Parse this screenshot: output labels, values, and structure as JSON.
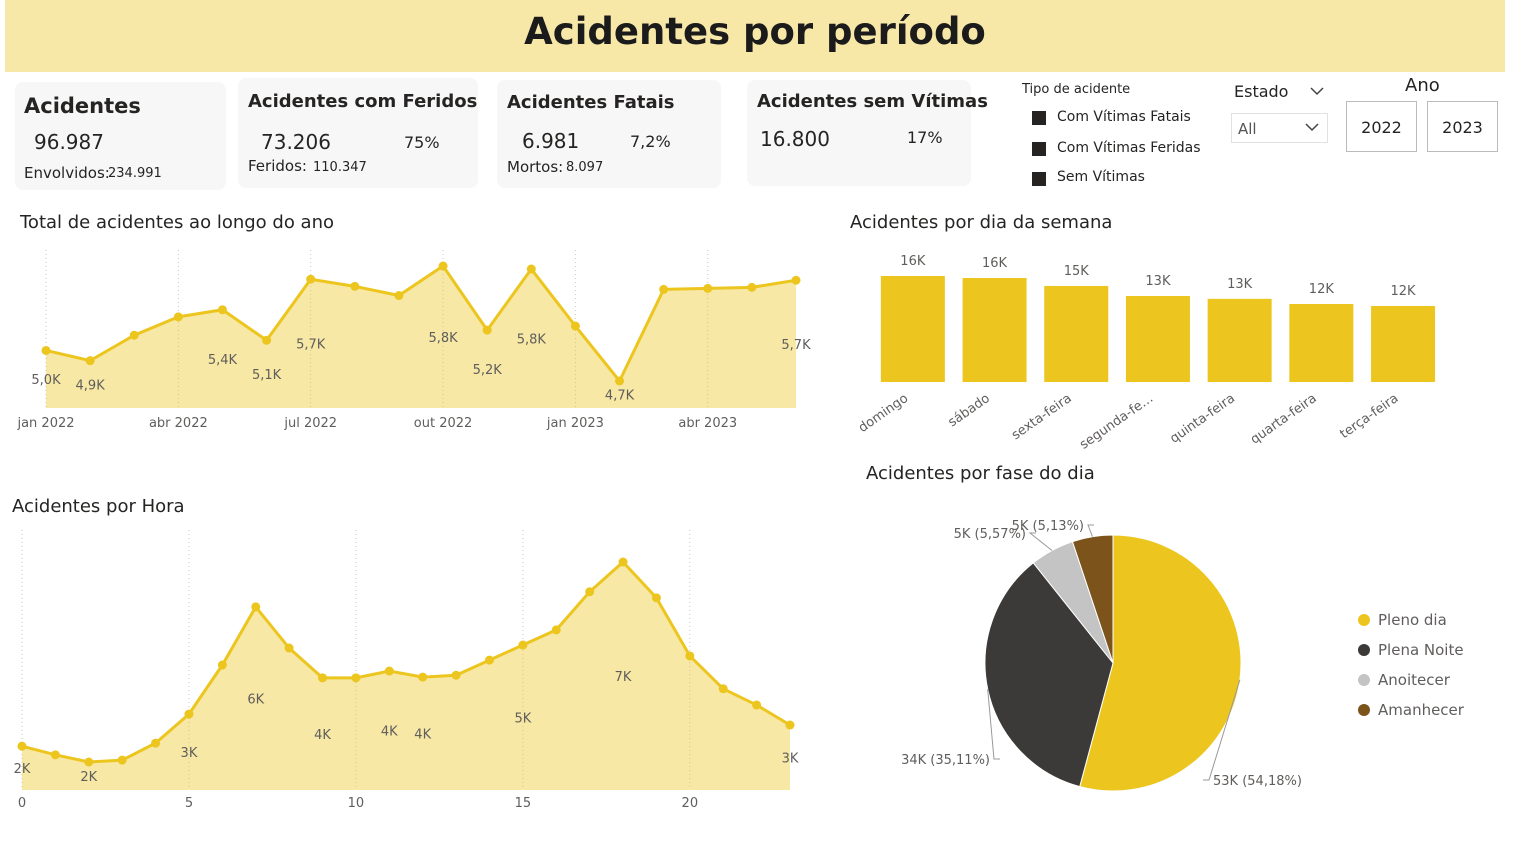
{
  "header": {
    "title": "Acidentes por período"
  },
  "cards": [
    {
      "title": "Acidentes",
      "value": "96.987",
      "detail_label": "Envolvidos:",
      "detail_value": "234.991"
    },
    {
      "title": "Acidentes com Feridos",
      "value": "73.206",
      "percent": "75%",
      "detail_label": "Feridos:",
      "detail_value": "110.347"
    },
    {
      "title": "Acidentes Fatais",
      "value": "6.981",
      "percent": "7,2%",
      "detail_label": "Mortos:",
      "detail_value": "8.097"
    },
    {
      "title": "Acidentes sem Vítimas",
      "value": "16.800",
      "percent": "17%"
    }
  ],
  "filters": {
    "type_label": "Tipo de acidente",
    "types": [
      "Com Vítimas Fatais",
      "Com Vítimas Feridas",
      "Sem Vítimas"
    ],
    "state_label": "Estado",
    "state_value": "All",
    "year_label": "Ano",
    "years": [
      "2022",
      "2023"
    ]
  },
  "chart_data": [
    {
      "type": "area",
      "title": "Total de acidentes ao longo do ano",
      "x": [
        "2022-01",
        "2022-02",
        "2022-03",
        "2022-04",
        "2022-05",
        "2022-06",
        "2022-07",
        "2022-08",
        "2022-09",
        "2022-10",
        "2022-11",
        "2022-12",
        "2023-01",
        "2023-02",
        "2023-03",
        "2023-04",
        "2023-05",
        "2023-06"
      ],
      "values": [
        5000,
        4900,
        5150,
        5330,
        5400,
        5100,
        5700,
        5630,
        5540,
        5830,
        5200,
        5800,
        5240,
        4700,
        5600,
        5610,
        5620,
        5690
      ],
      "value_labels": [
        "5,0K",
        "4,9K",
        null,
        null,
        "5,4K",
        "5,1K",
        "5,7K",
        null,
        null,
        "5,8K",
        "5,2K",
        "5,8K",
        null,
        "4,7K",
        null,
        null,
        null,
        "5,7K"
      ],
      "xlim": [
        "2022-01",
        "2023-06"
      ],
      "xticks": [
        {
          "value": "2022-01",
          "label": "jan 2022"
        },
        {
          "value": "2022-04",
          "label": "abr 2022"
        },
        {
          "value": "2022-07",
          "label": "jul 2022"
        },
        {
          "value": "2022-10",
          "label": "out 2022"
        },
        {
          "value": "2023-01",
          "label": "jan 2023"
        },
        {
          "value": "2023-04",
          "label": "abr 2023"
        }
      ],
      "color": "#ecc61f",
      "grid": true
    },
    {
      "type": "bar",
      "title": "Acidentes por dia da semana",
      "categories": [
        "domingo",
        "sábado",
        "sexta-feira",
        "segunda-fe…",
        "quinta-feira",
        "quarta-feira",
        "terça-feira"
      ],
      "values": [
        16060,
        15760,
        14550,
        13030,
        12600,
        11820,
        11520
      ],
      "value_labels": [
        "16K",
        "16K",
        "15K",
        "13K",
        "13K",
        "12K",
        "12K"
      ],
      "color": "#ecc61f"
    },
    {
      "type": "pie",
      "title": "Acidentes por fase do dia",
      "categories": [
        "Pleno dia",
        "Plena Noite",
        "Anoitecer",
        "Amanhecer"
      ],
      "values": [
        54.18,
        35.11,
        5.57,
        5.13
      ],
      "value_labels": [
        "53K (54,18%)",
        "34K (35,11%)",
        "5K (5,57%)",
        "5K (5,13%)"
      ],
      "colors": [
        "#ecc61f",
        "#3b3a39",
        "#c4c4c4",
        "#7b531b"
      ]
    },
    {
      "type": "area",
      "title": "Acidentes por Hora",
      "x": [
        0,
        1,
        2,
        3,
        4,
        5,
        6,
        7,
        8,
        9,
        10,
        11,
        12,
        13,
        14,
        15,
        16,
        17,
        18,
        19,
        20,
        21,
        22,
        23
      ],
      "values": [
        2120,
        1890,
        1700,
        1750,
        2200,
        2970,
        4270,
        5810,
        4720,
        3930,
        3930,
        4110,
        3950,
        4000,
        4400,
        4800,
        5200,
        6210,
        7000,
        6050,
        4510,
        3640,
        3210,
        2680
      ],
      "value_labels": [
        "2K",
        null,
        "2K",
        null,
        null,
        "3K",
        null,
        "6K",
        null,
        "4K",
        null,
        "4K",
        "4K",
        null,
        null,
        "5K",
        null,
        null,
        "7K",
        null,
        null,
        null,
        null,
        "3K"
      ],
      "xlim": [
        0,
        23
      ],
      "xticks": [
        0,
        5,
        10,
        15,
        20
      ],
      "color": "#ecc61f",
      "grid": true
    }
  ]
}
